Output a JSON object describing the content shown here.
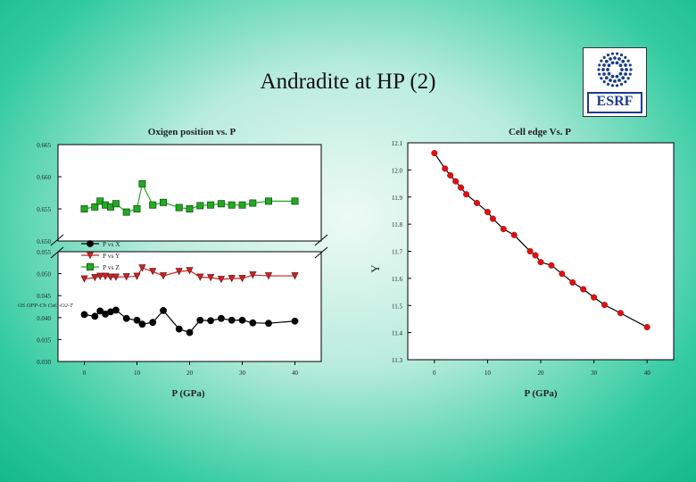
{
  "slide": {
    "title": "Andradite at HP (2)",
    "logo_text": "ESRF",
    "accent_color": "#1a3c8c"
  },
  "chart_data": [
    {
      "type": "line",
      "title": "Oxigen position vs. P",
      "xlabel": "P (GPa)",
      "ylabel": "",
      "xlim": [
        -5,
        45
      ],
      "xticks": [
        0,
        10,
        20,
        30,
        40
      ],
      "y_break": "axis break between 0.050 and 0.650",
      "yticks_upper": [
        "0.665",
        "0.660",
        "0.655",
        "0.650"
      ],
      "yticks_lower": [
        "0.055",
        "0.050",
        "0.045",
        "0.040",
        "0.035",
        "0.030"
      ],
      "legend_position": "left",
      "overlapping_axis_label": "OS OPP-Ch CaO-O2-T",
      "series": [
        {
          "name": "P vs X",
          "color": "#000000",
          "marker": "circle",
          "segment": "lower",
          "x": [
            0,
            2,
            3,
            4,
            5,
            6,
            8,
            10,
            11,
            13,
            15,
            18,
            20,
            22,
            24,
            26,
            28,
            30,
            32,
            35,
            40
          ],
          "y": [
            0.0407,
            0.0403,
            0.0415,
            0.0408,
            0.0413,
            0.0417,
            0.0398,
            0.0394,
            0.0385,
            0.0389,
            0.0416,
            0.0374,
            0.0366,
            0.0394,
            0.0393,
            0.0398,
            0.0394,
            0.0394,
            0.0388,
            0.0387,
            0.0392
          ]
        },
        {
          "name": "P vs Y",
          "color": "#cc2222",
          "marker": "triangle-down",
          "segment": "lower",
          "x": [
            0,
            2,
            3,
            4,
            5,
            6,
            8,
            10,
            11,
            13,
            15,
            18,
            20,
            22,
            24,
            26,
            28,
            30,
            32,
            35,
            40
          ],
          "y": [
            0.0488,
            0.0491,
            0.0494,
            0.0494,
            0.0492,
            0.0492,
            0.0493,
            0.0494,
            0.0513,
            0.0505,
            0.0495,
            0.0505,
            0.0507,
            0.0492,
            0.0491,
            0.0487,
            0.0489,
            0.0489,
            0.0497,
            0.0495,
            0.0495
          ]
        },
        {
          "name": "P vs Z",
          "color": "#22aa22",
          "marker": "square",
          "segment": "upper",
          "x": [
            0,
            2,
            3,
            4,
            5,
            6,
            8,
            10,
            11,
            13,
            15,
            18,
            20,
            22,
            24,
            26,
            28,
            30,
            32,
            35,
            40
          ],
          "y": [
            0.655,
            0.6553,
            0.6562,
            0.6556,
            0.6553,
            0.6558,
            0.6545,
            0.655,
            0.6589,
            0.6556,
            0.656,
            0.6552,
            0.655,
            0.6555,
            0.6556,
            0.6558,
            0.6556,
            0.6556,
            0.6559,
            0.6562,
            0.6562
          ]
        }
      ]
    },
    {
      "type": "line",
      "title": "Cell edge Vs. P",
      "xlabel": "P (GPa)",
      "ylabel": "Y",
      "xlim": [
        -5,
        45
      ],
      "ylim": [
        11.3,
        12.1
      ],
      "xticks": [
        0,
        10,
        20,
        30,
        40
      ],
      "yticks": [
        11.3,
        11.4,
        11.5,
        11.6,
        11.7,
        11.8,
        11.9,
        12.0,
        12.1
      ],
      "series": [
        {
          "name": "Cell edge",
          "color": "#dd1111",
          "marker": "circle",
          "x": [
            0,
            2,
            3,
            4,
            5,
            6,
            8,
            10,
            11,
            13,
            15,
            18,
            19,
            20,
            22,
            24,
            26,
            28,
            30,
            32,
            35,
            40
          ],
          "y": [
            12.062,
            12.005,
            11.98,
            11.958,
            11.935,
            11.91,
            11.878,
            11.845,
            11.82,
            11.782,
            11.76,
            11.7,
            11.685,
            11.66,
            11.648,
            11.617,
            11.585,
            11.56,
            11.53,
            11.502,
            11.472,
            11.42
          ]
        }
      ]
    }
  ]
}
